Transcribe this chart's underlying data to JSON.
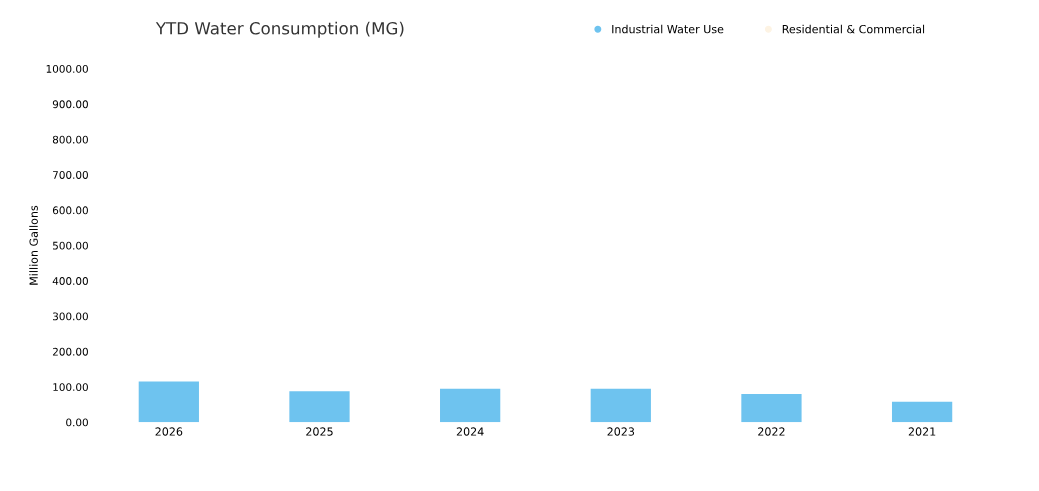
{
  "chart_data": {
    "type": "bar",
    "title": "YTD Water Consumption (MG)",
    "ylabel": "Million Gallons",
    "categories": [
      "2026",
      "2025",
      "2024",
      "2023",
      "2022",
      "2021"
    ],
    "series": [
      {
        "name": "Industrial Water Use",
        "color": "#6ec3ef",
        "values": [
          115,
          88,
          95,
          95,
          80,
          58
        ]
      },
      {
        "name": "Residential & Commercial",
        "color": "#fdf3e3",
        "values": [
          null,
          null,
          null,
          null,
          null,
          null
        ]
      }
    ],
    "stacked": true,
    "ylim": [
      0,
      1000
    ],
    "yticks": [
      {
        "value": 0,
        "label": "0.00"
      },
      {
        "value": 100,
        "label": "100.00"
      },
      {
        "value": 200,
        "label": "200.00"
      },
      {
        "value": 300,
        "label": "300.00"
      },
      {
        "value": 400,
        "label": "400.00"
      },
      {
        "value": 500,
        "label": "500.00"
      },
      {
        "value": 600,
        "label": "600.00"
      },
      {
        "value": 700,
        "label": "700.00"
      },
      {
        "value": 800,
        "label": "800.00"
      },
      {
        "value": 900,
        "label": "900.00"
      },
      {
        "value": 1000,
        "label": "1000.00"
      }
    ],
    "grid": false,
    "legend": "top right"
  }
}
